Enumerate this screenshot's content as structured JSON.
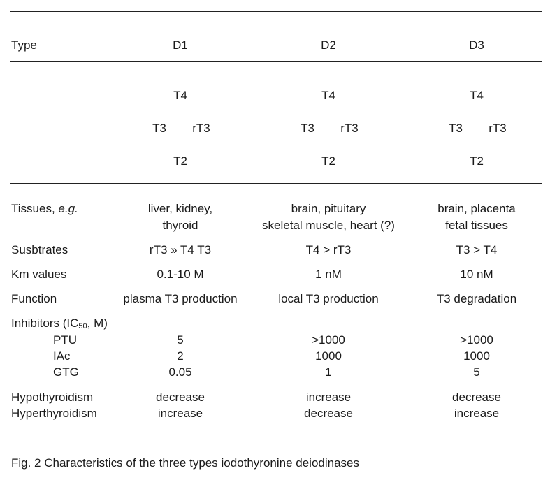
{
  "header": {
    "type": "Type",
    "columns": [
      "D1",
      "D2",
      "D3"
    ]
  },
  "scheme": [
    {
      "top": "T4",
      "left": "T3",
      "right": "rT3",
      "bottom": "T2"
    },
    {
      "top": "T4",
      "left": "T3",
      "right": "rT3",
      "bottom": "T2"
    },
    {
      "top": "T4",
      "left": "T3",
      "right": "rT3",
      "bottom": "T2"
    }
  ],
  "rows": {
    "tissues": {
      "label": "Tissues, ",
      "label_em": "e.g.",
      "values": [
        [
          "liver, kidney,",
          "thyroid"
        ],
        [
          "brain, pituitary",
          "skeletal muscle, heart (?)"
        ],
        [
          "brain, placenta",
          "fetal tissues"
        ]
      ]
    },
    "substrates": {
      "label": "Susbtrates",
      "values": [
        "rT3 » T4    T3",
        "T4 > rT3",
        "T3 > T4"
      ]
    },
    "km": {
      "label": "Km values",
      "values": [
        "0.1-10  M",
        "1 nM",
        "10 nM"
      ]
    },
    "function": {
      "label": "Function",
      "values": [
        "plasma T3 production",
        "local T3 production",
        "T3 degradation"
      ]
    },
    "inhibitors": {
      "label_pre": "Inhibitors (IC",
      "label_sub": "50",
      "label_post": ",  M)",
      "items": [
        {
          "name": "PTU",
          "values": [
            "5",
            ">1000",
            ">1000"
          ]
        },
        {
          "name": "IAc",
          "values": [
            "2",
            "1000",
            "1000"
          ]
        },
        {
          "name": "GTG",
          "values": [
            "0.05",
            "1",
            "5"
          ]
        }
      ]
    },
    "hypo": {
      "label": "Hypothyroidism",
      "values": [
        "decrease",
        "increase",
        "decrease"
      ]
    },
    "hyper": {
      "label": "Hyperthyroidism",
      "values": [
        "increase",
        "decrease",
        "increase"
      ]
    }
  },
  "caption": "Fig. 2  Characteristics of the three types iodothyronine deiodinases"
}
